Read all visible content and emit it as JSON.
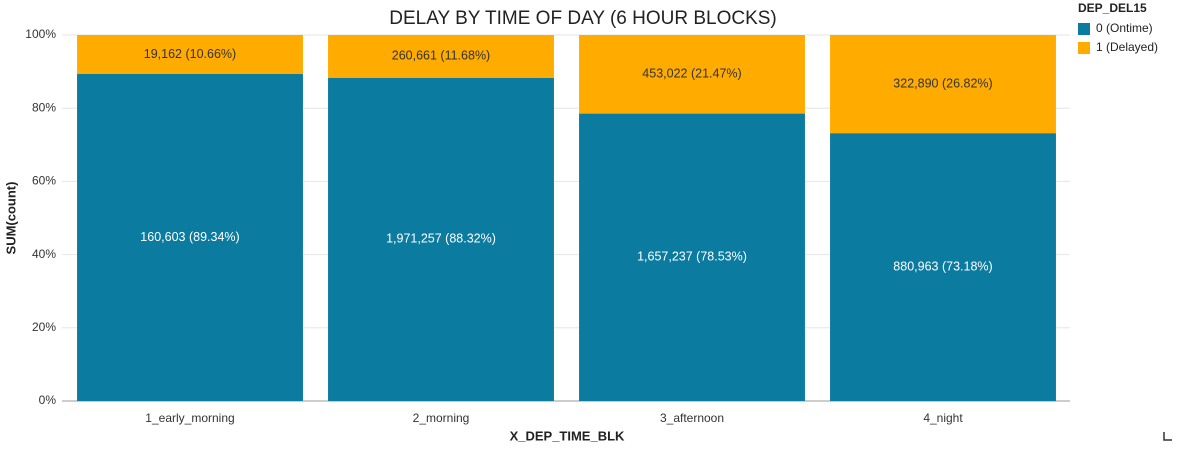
{
  "chart_data": {
    "type": "stacked_bar_100",
    "title": "DELAY BY TIME OF DAY (6 HOUR BLOCKS)",
    "x_label": "X_DEP_TIME_BLK",
    "y_label": "SUM(count)",
    "legend_title": "DEP_DEL15",
    "legend_position": "top-right",
    "categories": [
      "1_early_morning",
      "2_morning",
      "3_afternoon",
      "4_night"
    ],
    "series": [
      {
        "name": "0 (Ontime)",
        "color": "#0b7b9f",
        "values": [
          89.34,
          88.32,
          78.53,
          73.18
        ],
        "value_labels": [
          "160,603 (89.34%)",
          "1,971,257 (88.32%)",
          "1,657,237 (78.53%)",
          "880,963 (73.18%)"
        ]
      },
      {
        "name": "1 (Delayed)",
        "color": "#ffab00",
        "values": [
          10.66,
          11.68,
          21.47,
          26.82
        ],
        "value_labels": [
          "19,162 (10.66%)",
          "260,661 (11.68%)",
          "453,022 (21.47%)",
          "322,890 (26.82%)"
        ]
      }
    ],
    "ylim": [
      0,
      100
    ],
    "yticks": [
      {
        "value": 0,
        "label": "0%"
      },
      {
        "value": 20,
        "label": "20%"
      },
      {
        "value": 40,
        "label": "40%"
      },
      {
        "value": 60,
        "label": "60%"
      },
      {
        "value": 80,
        "label": "80%"
      },
      {
        "value": 100,
        "label": "100%"
      }
    ],
    "grid": true
  }
}
